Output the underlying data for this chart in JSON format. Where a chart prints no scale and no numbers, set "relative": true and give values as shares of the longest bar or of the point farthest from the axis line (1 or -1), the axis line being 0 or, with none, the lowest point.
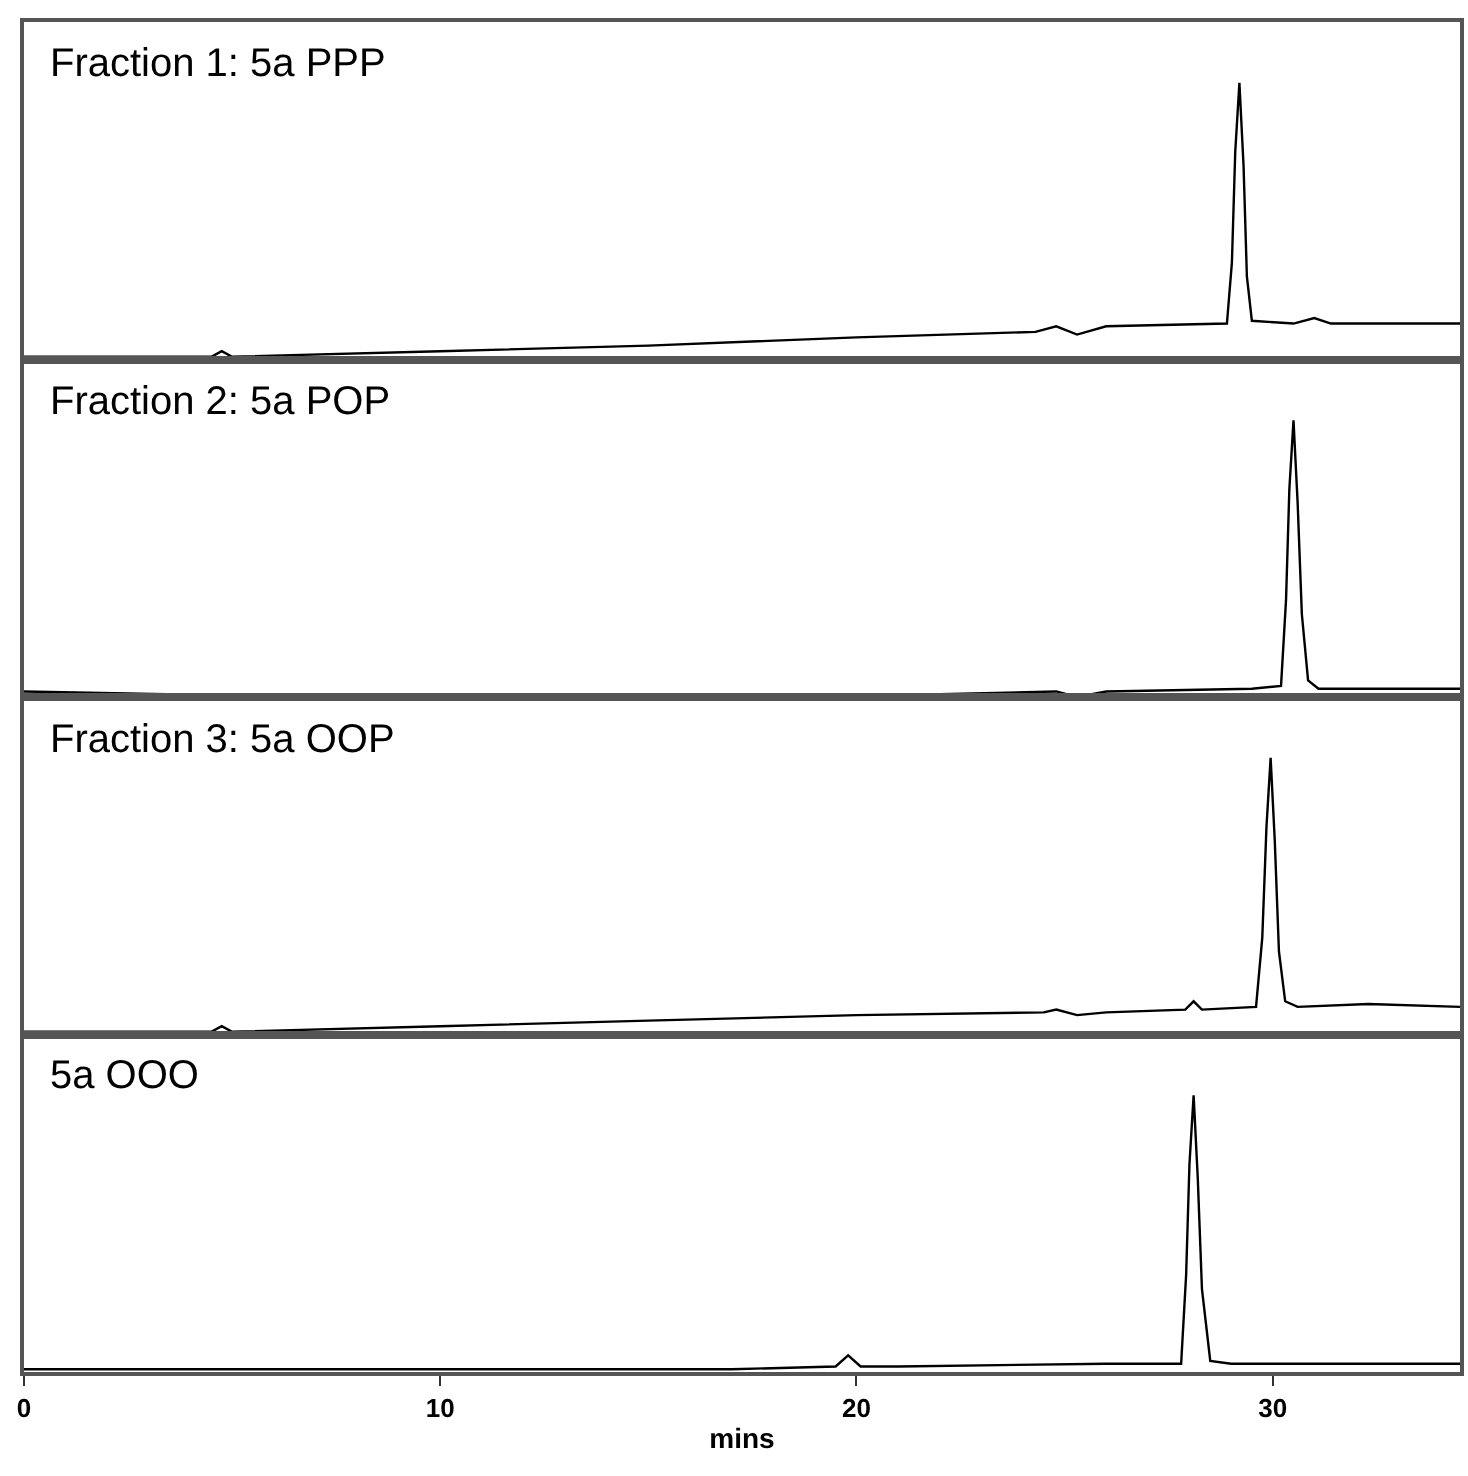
{
  "chart_data": [
    {
      "type": "line",
      "title": "Fraction 1: 5a PPP",
      "relative": true,
      "xlim": [
        0,
        34.5
      ],
      "tick_labels": false,
      "grid": false,
      "x": [
        0,
        4.5,
        4.75,
        5.0,
        10,
        15,
        20,
        24.3,
        24.8,
        25.3,
        26,
        28.9,
        29.02,
        29.1,
        29.2,
        29.3,
        29.38,
        29.5,
        30.5,
        31.0,
        31.4,
        34.5
      ],
      "series": [
        {
          "color": "#000000",
          "values": [
            0.01,
            0.01,
            0.03,
            0.01,
            0.03,
            0.05,
            0.08,
            0.1,
            0.12,
            0.09,
            0.12,
            0.13,
            0.35,
            0.75,
            1,
            0.7,
            0.3,
            0.14,
            0.13,
            0.15,
            0.13,
            0.13
          ]
        }
      ]
    },
    {
      "type": "line",
      "title": "Fraction 2: 5a POP",
      "relative": true,
      "xlim": [
        0,
        34.5
      ],
      "tick_labels": false,
      "grid": false,
      "x": [
        0,
        7,
        15,
        22,
        24.8,
        25.3,
        26,
        29.5,
        30.2,
        30.32,
        30.4,
        30.5,
        30.6,
        30.7,
        30.85,
        31.1,
        34.5
      ],
      "series": [
        {
          "color": "#000000",
          "values": [
            0.02,
            0.0,
            0.0,
            0.01,
            0.02,
            0.0,
            0.02,
            0.03,
            0.04,
            0.35,
            0.75,
            1,
            0.7,
            0.3,
            0.06,
            0.03,
            0.03
          ]
        }
      ]
    },
    {
      "type": "line",
      "title": "Fraction 3: 5a OOP",
      "relative": true,
      "xlim": [
        0,
        34.5
      ],
      "tick_labels": false,
      "grid": false,
      "x": [
        0,
        4.5,
        4.75,
        5.0,
        10,
        15,
        20,
        24.5,
        24.8,
        25.3,
        26,
        27.9,
        28.1,
        28.3,
        29.6,
        29.75,
        29.85,
        29.95,
        30.05,
        30.15,
        30.3,
        30.6,
        32.3,
        34.5
      ],
      "series": [
        {
          "color": "#000000",
          "values": [
            0.01,
            0.01,
            0.03,
            0.01,
            0.03,
            0.05,
            0.07,
            0.08,
            0.09,
            0.07,
            0.08,
            0.09,
            0.12,
            0.09,
            0.1,
            0.35,
            0.75,
            1,
            0.7,
            0.3,
            0.12,
            0.1,
            0.11,
            0.1
          ]
        }
      ]
    },
    {
      "type": "line",
      "title": "5a OOO",
      "relative": true,
      "xlim": [
        0,
        34.5
      ],
      "xticks": [
        0,
        10,
        20,
        30
      ],
      "xlabel": "mins",
      "tick_labels": "x",
      "grid": false,
      "x": [
        0,
        10,
        17,
        19.5,
        19.8,
        20.1,
        21,
        26,
        27.8,
        27.92,
        28.0,
        28.1,
        28.2,
        28.3,
        28.5,
        29,
        32.5,
        34.5
      ],
      "series": [
        {
          "color": "#000000",
          "values": [
            0.01,
            0.01,
            0.01,
            0.02,
            0.06,
            0.02,
            0.02,
            0.03,
            0.03,
            0.35,
            0.75,
            1,
            0.7,
            0.3,
            0.04,
            0.03,
            0.03,
            0.03
          ]
        }
      ]
    }
  ]
}
